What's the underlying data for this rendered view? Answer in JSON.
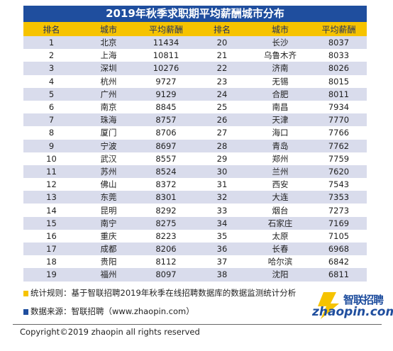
{
  "title": "2019年秋季求职期平均薪酬城市分布",
  "headers": [
    "排名",
    "城市",
    "平均薪酬",
    "排名",
    "城市",
    "平均薪酬"
  ],
  "rows": [
    [
      "1",
      "北京",
      "11434",
      "20",
      "长沙",
      "8037"
    ],
    [
      "2",
      "上海",
      "10811",
      "21",
      "乌鲁木齐",
      "8033"
    ],
    [
      "3",
      "深圳",
      "10276",
      "22",
      "济南",
      "8026"
    ],
    [
      "4",
      "杭州",
      "9727",
      "23",
      "无锡",
      "8015"
    ],
    [
      "5",
      "广州",
      "9129",
      "24",
      "合肥",
      "8011"
    ],
    [
      "6",
      "南京",
      "8845",
      "25",
      "南昌",
      "7934"
    ],
    [
      "7",
      "珠海",
      "8757",
      "26",
      "天津",
      "7770"
    ],
    [
      "8",
      "厦门",
      "8706",
      "27",
      "海口",
      "7766"
    ],
    [
      "9",
      "宁波",
      "8697",
      "28",
      "青岛",
      "7762"
    ],
    [
      "10",
      "武汉",
      "8557",
      "29",
      "郑州",
      "7759"
    ],
    [
      "11",
      "苏州",
      "8524",
      "30",
      "兰州",
      "7620"
    ],
    [
      "12",
      "佛山",
      "8372",
      "31",
      "西安",
      "7543"
    ],
    [
      "13",
      "东莞",
      "8301",
      "32",
      "大连",
      "7353"
    ],
    [
      "14",
      "昆明",
      "8292",
      "33",
      "烟台",
      "7273"
    ],
    [
      "15",
      "南宁",
      "8275",
      "34",
      "石家庄",
      "7169"
    ],
    [
      "16",
      "重庆",
      "8223",
      "35",
      "太原",
      "7105"
    ],
    [
      "17",
      "成都",
      "8206",
      "36",
      "长春",
      "6968"
    ],
    [
      "18",
      "贵阳",
      "8112",
      "37",
      "哈尔滨",
      "6842"
    ],
    [
      "19",
      "福州",
      "8097",
      "38",
      "沈阳",
      "6811"
    ]
  ],
  "notes": {
    "stats_rule": "统计规则：基于智联招聘2019年秋季在线招聘数据库的数据监测统计分析",
    "source": "数据来源：智联招聘（www.zhaopin.com）"
  },
  "logo": {
    "cn": "智联招聘",
    "en": "zhaopin.com"
  },
  "copyright": "Copyright©2019 zhaopin all rights reserved",
  "colors": {
    "title_bg": "#1f4e9e",
    "header_bg": "#f6c300",
    "stripe": "#d9dcec",
    "marker_yellow": "#f6c300",
    "marker_blue": "#1f4e9e"
  }
}
